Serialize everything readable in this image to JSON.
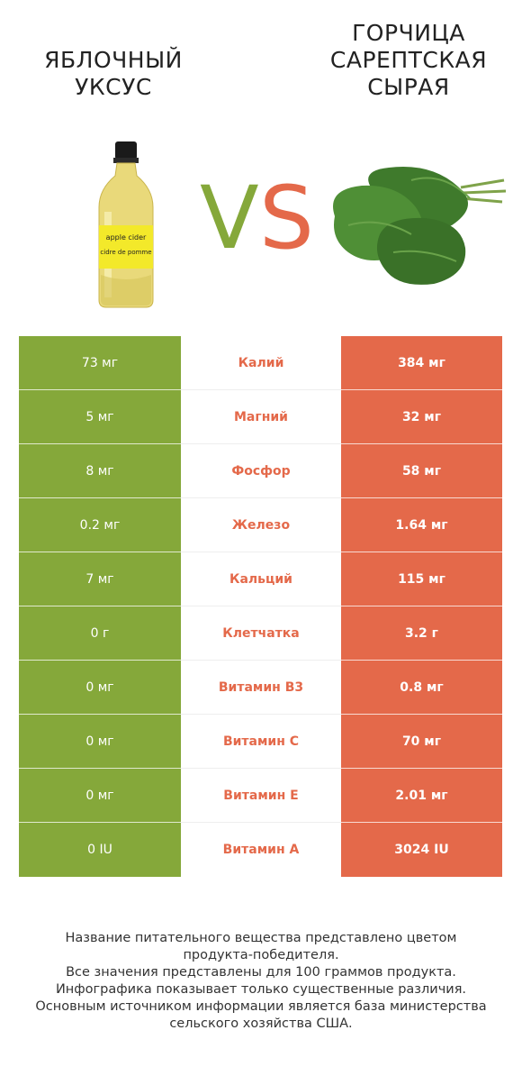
{
  "products": {
    "left": {
      "name": "ЯБЛОЧНЫЙ\nУКСУС",
      "color": "#85a83a",
      "image": "apple-cider-vinegar-bottle"
    },
    "right": {
      "name": "ГОРЧИЦА\nСАРЕПТСКАЯ\nСЫРАЯ",
      "color": "#e4694a",
      "image": "mustard-greens"
    }
  },
  "vs": {
    "v": "V",
    "s": "S"
  },
  "bottle_label": {
    "line1": "apple cider",
    "line2": "cidre de pomme"
  },
  "rows": [
    {
      "left": "73 мг",
      "nutrient": "Калий",
      "right": "384 мг"
    },
    {
      "left": "5 мг",
      "nutrient": "Магний",
      "right": "32 мг"
    },
    {
      "left": "8 мг",
      "nutrient": "Фосфор",
      "right": "58 мг"
    },
    {
      "left": "0.2 мг",
      "nutrient": "Железо",
      "right": "1.64 мг"
    },
    {
      "left": "7 мг",
      "nutrient": "Кальций",
      "right": "115 мг"
    },
    {
      "left": "0 г",
      "nutrient": "Клетчатка",
      "right": "3.2 г"
    },
    {
      "left": "0 мг",
      "nutrient": "Витамин B3",
      "right": "0.8 мг"
    },
    {
      "left": "0 мг",
      "nutrient": "Витамин C",
      "right": "70 мг"
    },
    {
      "left": "0 мг",
      "nutrient": "Витамин E",
      "right": "2.01 мг"
    },
    {
      "left": "0 IU",
      "nutrient": "Витамин A",
      "right": "3024 IU"
    }
  ],
  "footer": [
    "Название питательного вещества представлено цветом",
    "продукта-победителя.",
    "Все значения представлены для 100 граммов продукта.",
    "Инфографика показывает только существенные различия.",
    "Основным источником информации является база министерства",
    "сельского хозяйства США."
  ]
}
